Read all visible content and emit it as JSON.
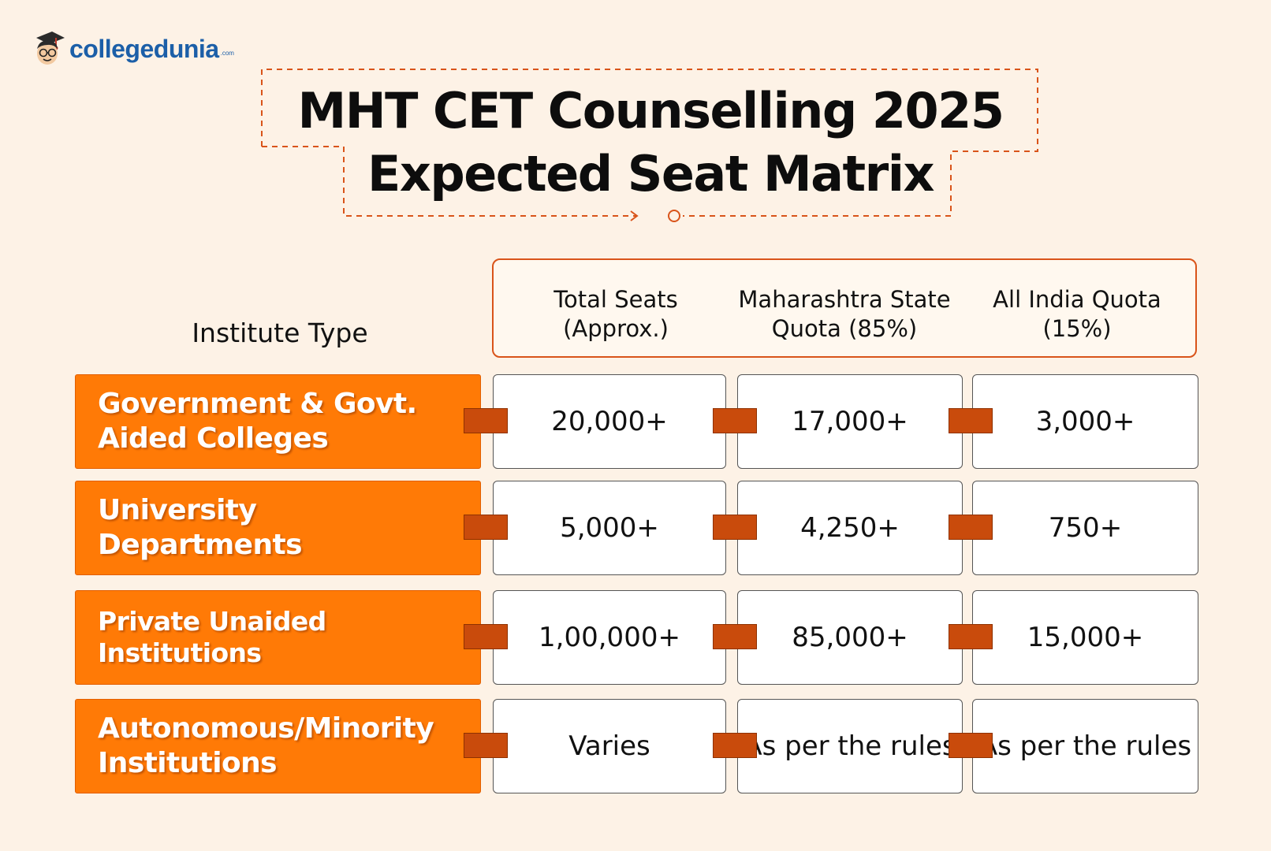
{
  "brand": {
    "name": "collegedunia",
    "suffix": ".com",
    "logo_icon": "graduate-mascot-icon",
    "color": "#1c5fa8"
  },
  "title": {
    "line1": "MHT CET Counselling 2025",
    "line2": "Expected Seat Matrix",
    "frame_color": "#d9541a"
  },
  "table": {
    "institute_header": "Institute Type",
    "columns": [
      "Total Seats (Approx.)",
      "Maharashtra State Quota (85%)",
      "All India Quota (15%)"
    ],
    "rows": [
      {
        "institute": "Government & Govt.\nAided Colleges",
        "total": "20,000+",
        "state": "17,000+",
        "all_india": "3,000+"
      },
      {
        "institute": "University\nDepartments",
        "total": "5,000+",
        "state": "4,250+",
        "all_india": "750+"
      },
      {
        "institute": "Private Unaided\nInstitutions",
        "total": "1,00,000+",
        "state": "85,000+",
        "all_india": "15,000+"
      },
      {
        "institute": "Autonomous/Minority\nInstitutions",
        "total": "Varies",
        "state": "As per the rules",
        "all_india": "As per the rules"
      }
    ],
    "colors": {
      "institute_bg": "#ff7a06",
      "connector": "#c94b0c",
      "page_bg": "#fdf2e6"
    }
  }
}
